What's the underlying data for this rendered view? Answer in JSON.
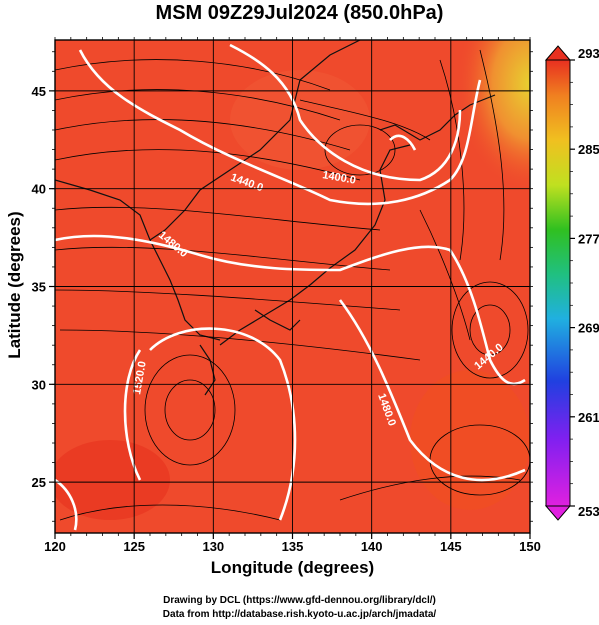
{
  "title": "MSM 09Z29Jul2024 (850.0hPa)",
  "xlabel": "Longitude (degrees)",
  "ylabel": "Latitude  (degrees)",
  "credit_line1": "Drawing by DCL (https://www.gfd-dennou.org/library/dcl/)",
  "credit_line2": "Data from http://database.rish.kyoto-u.ac.jp/arch/jmadata/",
  "chart_data": {
    "type": "heatmap",
    "title": "MSM 09Z29Jul2024 (850.0hPa)",
    "xlabel": "Longitude (degrees)",
    "ylabel": "Latitude  (degrees)",
    "xlim": [
      120,
      150
    ],
    "ylim": [
      22.4,
      47.6
    ],
    "x_ticks": [
      "120",
      "125",
      "130",
      "135",
      "140",
      "145",
      "150"
    ],
    "y_ticks": [
      "25",
      "30",
      "35",
      "40",
      "45"
    ],
    "grid": true,
    "colorbar": {
      "min": 253,
      "max": 293,
      "ticks": [
        "293",
        "285",
        "277",
        "269",
        "261",
        "253"
      ]
    },
    "contour_labels": [
      "1440.0",
      "1400.0",
      "1480.0",
      "1520.0",
      "1440.0",
      "1480.0"
    ]
  },
  "colors": {
    "background_field": "#f04628",
    "contour_line": "#ffffff",
    "streamline": "#000000"
  }
}
